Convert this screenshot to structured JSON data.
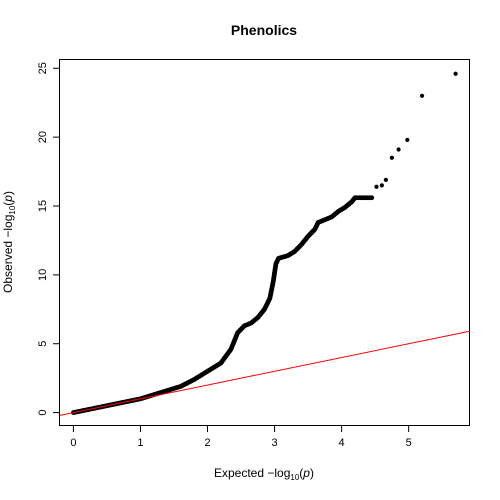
{
  "chart_data": {
    "type": "scatter",
    "title": "Phenolics",
    "xlabel": {
      "prefix": "Expected  −log",
      "sub": "10",
      "paren_open": "(",
      "var": "p",
      "paren_close": ")"
    },
    "ylabel": {
      "prefix": "Observed  −log",
      "sub": "10",
      "paren_open": "(",
      "var": "p",
      "paren_close": ")"
    },
    "xlim": [
      -0.2,
      5.9
    ],
    "ylim": [
      -0.9,
      25.6
    ],
    "x_ticks": [
      0,
      1,
      2,
      3,
      4,
      5
    ],
    "y_ticks": [
      0,
      5,
      10,
      15,
      20,
      25
    ],
    "x_tick_labels": [
      "0",
      "1",
      "2",
      "3",
      "4",
      "5"
    ],
    "y_tick_labels": [
      "0",
      "5",
      "10",
      "15",
      "20",
      "25"
    ],
    "grid": false,
    "reference_line": {
      "slope": 1,
      "intercept": 0,
      "color": "#ff0000"
    },
    "point_color": "#000000",
    "qq_curve": [
      [
        0.0,
        0.0
      ],
      [
        0.2,
        0.2
      ],
      [
        0.4,
        0.4
      ],
      [
        0.6,
        0.6
      ],
      [
        0.8,
        0.8
      ],
      [
        1.0,
        1.0
      ],
      [
        1.2,
        1.3
      ],
      [
        1.4,
        1.6
      ],
      [
        1.6,
        1.9
      ],
      [
        1.8,
        2.4
      ],
      [
        2.0,
        3.0
      ],
      [
        2.2,
        3.6
      ],
      [
        2.35,
        4.6
      ],
      [
        2.45,
        5.8
      ],
      [
        2.55,
        6.3
      ],
      [
        2.65,
        6.5
      ],
      [
        2.75,
        6.9
      ],
      [
        2.85,
        7.5
      ],
      [
        2.93,
        8.3
      ],
      [
        2.98,
        9.5
      ],
      [
        3.02,
        10.8
      ],
      [
        3.06,
        11.2
      ],
      [
        3.2,
        11.4
      ],
      [
        3.3,
        11.7
      ],
      [
        3.4,
        12.2
      ],
      [
        3.5,
        12.8
      ],
      [
        3.6,
        13.3
      ],
      [
        3.65,
        13.8
      ],
      [
        3.75,
        14.0
      ],
      [
        3.85,
        14.2
      ],
      [
        3.95,
        14.6
      ],
      [
        4.05,
        14.9
      ],
      [
        4.15,
        15.3
      ],
      [
        4.2,
        15.6
      ],
      [
        4.3,
        15.6
      ],
      [
        4.45,
        15.6
      ]
    ],
    "outliers": [
      [
        4.52,
        16.4
      ],
      [
        4.6,
        16.5
      ],
      [
        4.66,
        16.9
      ],
      [
        4.75,
        18.5
      ],
      [
        4.85,
        19.1
      ],
      [
        4.98,
        19.8
      ],
      [
        5.2,
        23.0
      ],
      [
        5.7,
        24.6
      ]
    ]
  }
}
